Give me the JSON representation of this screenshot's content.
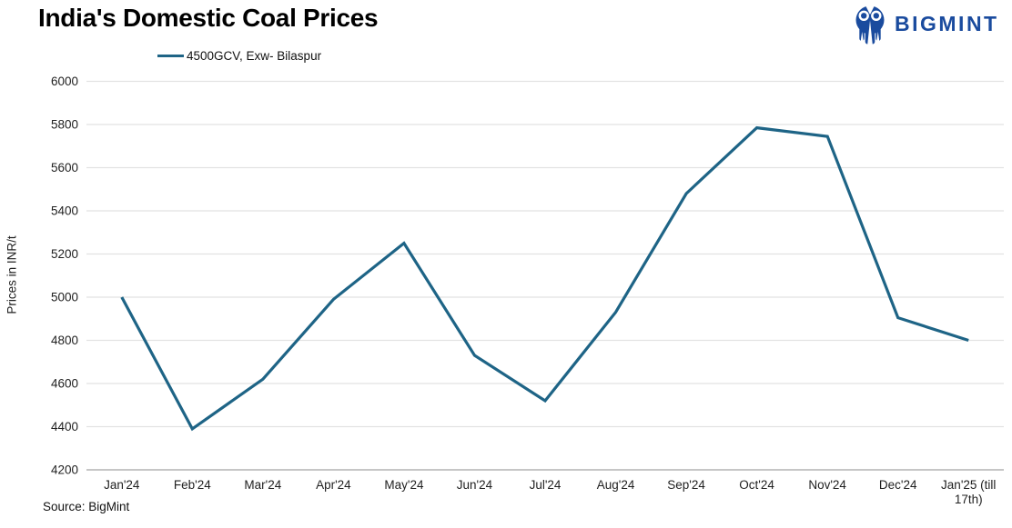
{
  "header": {
    "logo_text": "BIGMINT",
    "logo_icon": "bigmint-two-people-icon",
    "logo_color": "#1a4b9e"
  },
  "footer": {
    "source": "Source: BigMint"
  },
  "colors": {
    "line": "#1e6486",
    "gridline": "#e2e2e2",
    "axis_line": "#a3a3a3",
    "title_text": "#000000",
    "tick_text": "#1f1f1f"
  },
  "chart_data": {
    "type": "line",
    "title": "India's Domestic Coal Prices",
    "xlabel": "",
    "ylabel": "Prices in INR/t",
    "categories": [
      "Jan'24",
      "Feb'24",
      "Mar'24",
      "Apr'24",
      "May'24",
      "Jun'24",
      "Jul'24",
      "Aug'24",
      "Sep'24",
      "Oct'24",
      "Nov'24",
      "Dec'24",
      "Jan'25 (till\n17th)"
    ],
    "series": [
      {
        "name": "4500GCV, Exw- Bilaspur",
        "color": "#1e6486",
        "values": [
          5000,
          4390,
          4620,
          4990,
          5250,
          4730,
          4520,
          4930,
          5480,
          5785,
          5745,
          4905,
          4800
        ]
      }
    ],
    "ylim": [
      4200,
      6000
    ],
    "ytick_step": 200,
    "yticks": [
      4200,
      4400,
      4600,
      4800,
      5000,
      5200,
      5400,
      5600,
      5800,
      6000
    ],
    "grid": "horizontal",
    "legend_position": "top-left"
  }
}
